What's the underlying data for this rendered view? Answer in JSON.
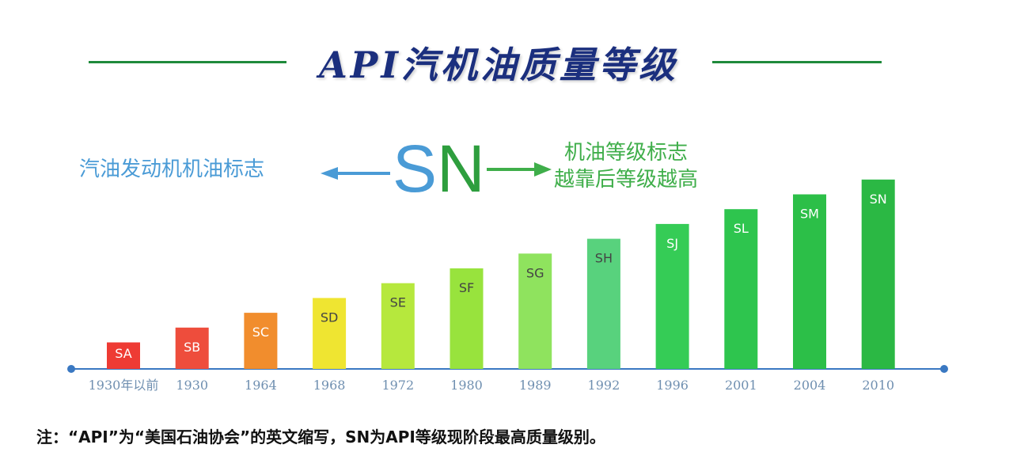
{
  "title": "API汽机油质量等级",
  "legend": {
    "left_text": "汽油发动机机油标志",
    "sn_s": "S",
    "sn_n": "N",
    "right_line1": "机油等级标志",
    "right_line2": "越靠后等级越高"
  },
  "note": "注：“API”为“美国石油协会”的英文缩写，SN为API等级现阶段最高质量级别。",
  "colors": {
    "title": "#1b2f7e",
    "title_line": "#1f8a3b",
    "legend_blue": "#4a9bd6",
    "legend_green": "#3fae4a",
    "axis": "#3a78c2"
  },
  "chart_data": {
    "type": "bar",
    "categories": [
      "SA",
      "SB",
      "SC",
      "SD",
      "SE",
      "SF",
      "SG",
      "SH",
      "SJ",
      "SL",
      "SM",
      "SN"
    ],
    "x": [
      "1930年以前",
      "1930",
      "1964",
      "1968",
      "1972",
      "1980",
      "1989",
      "1992",
      "1996",
      "2001",
      "2004",
      "2010"
    ],
    "values": [
      1,
      2,
      3,
      4,
      5,
      6,
      7,
      8,
      9,
      10,
      11,
      12
    ],
    "bar_colors": [
      "#ee3b34",
      "#ee4d3c",
      "#f18d2d",
      "#efe531",
      "#b6e83d",
      "#98e33d",
      "#8fe35e",
      "#58d27d",
      "#35cc56",
      "#2ec54e",
      "#2cbf48",
      "#2bb844"
    ],
    "label_colors": [
      "#ffffff",
      "#ffffff",
      "#ffffff",
      "#444444",
      "#444444",
      "#444444",
      "#444444",
      "#444444",
      "#ffffff",
      "#ffffff",
      "#ffffff",
      "#ffffff"
    ],
    "ylim": [
      0,
      12
    ],
    "grid": false,
    "xlabel": "",
    "ylabel": ""
  }
}
